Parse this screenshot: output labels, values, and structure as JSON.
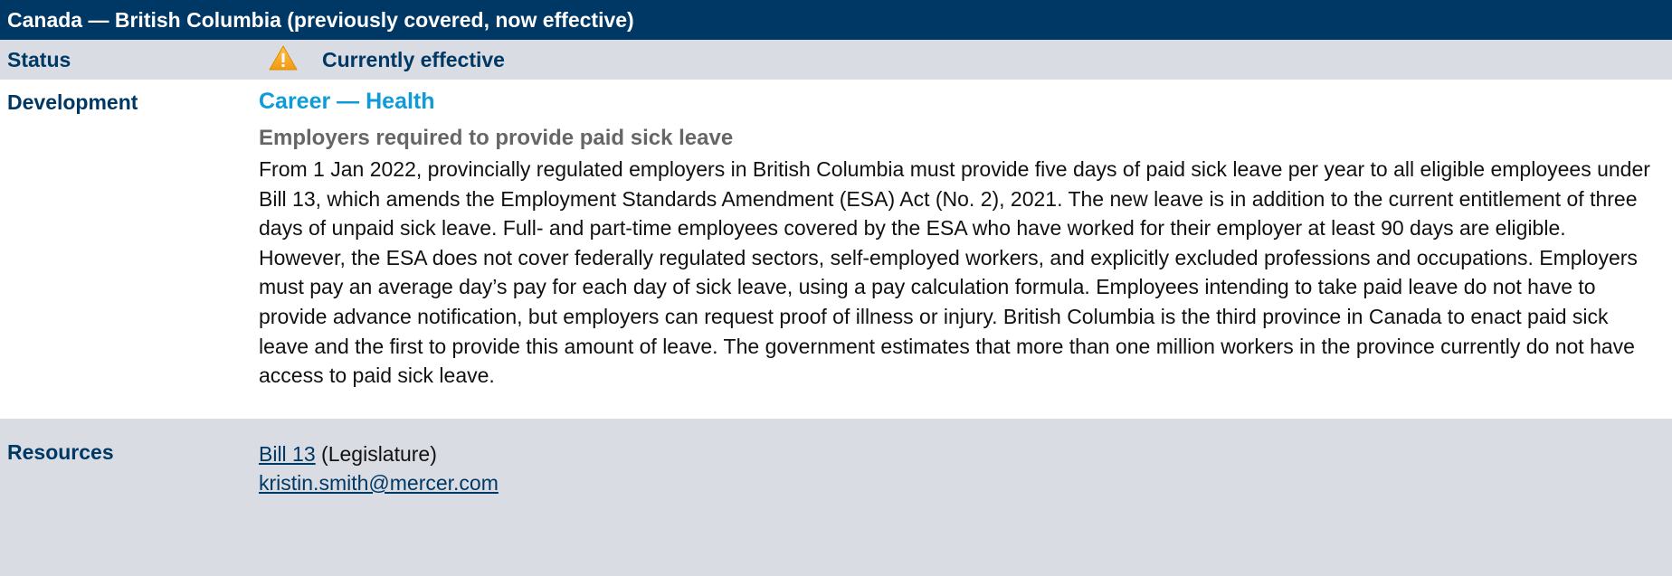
{
  "header": {
    "title": "Canada — British Columbia (previously covered, now effective)"
  },
  "status": {
    "label": "Status",
    "value": "Currently effective"
  },
  "development": {
    "label": "Development",
    "area": "Career — Health",
    "headline": "Employers required to provide paid sick leave",
    "body": "From 1 Jan 2022, provincially regulated employers in British Columbia must provide five days of paid sick leave per year to all eligible employees under Bill 13, which amends the Employment Standards Amendment (ESA) Act (No. 2), 2021. The new leave is in addition to the current entitlement of three days of unpaid sick leave. Full- and part-time employees covered by the ESA who have worked for their employer at least 90 days are eligible. However, the ESA does not cover federally regulated sectors, self-employed workers, and explicitly excluded professions and occupations. Employers must pay an average day’s pay for each day of sick leave, using a pay calculation formula. Employees intending to take paid leave do not have to provide advance notification, but employers can request proof of illness or injury. British Columbia is the third province in Canada to enact paid sick leave and the first to provide this amount of leave. The government estimates that more than one million workers in the province currently do not have access to paid sick leave."
  },
  "resources": {
    "label": "Resources",
    "items": [
      {
        "link": "Bill 13",
        "note": "(Legislature)"
      },
      {
        "link": "kristin.smith@mercer.com"
      }
    ]
  }
}
